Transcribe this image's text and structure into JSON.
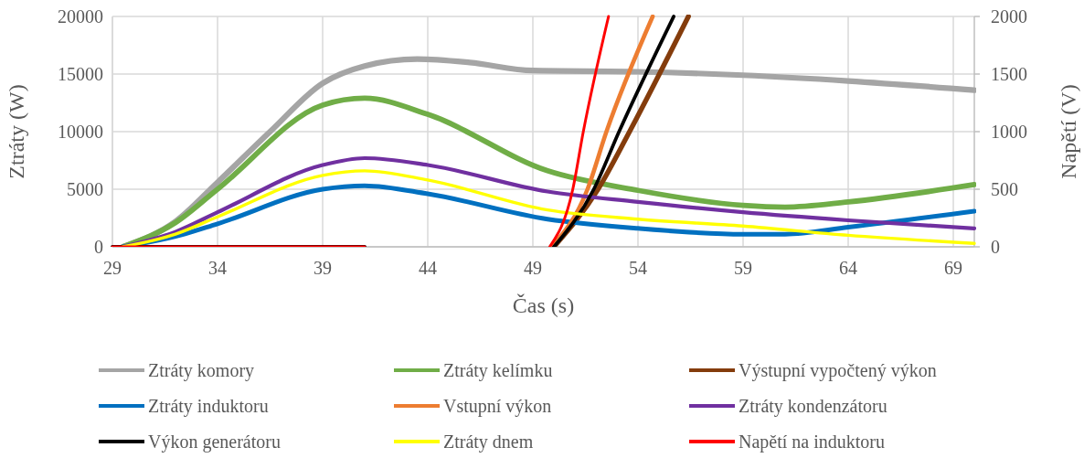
{
  "chart_data": {
    "type": "line",
    "xlabel": "Čas (s)",
    "ylabel": "Ztráty (W)",
    "y2label": "Napětí (V)",
    "xlim": [
      29,
      70
    ],
    "xticks": [
      29,
      34,
      39,
      44,
      49,
      54,
      59,
      64,
      69
    ],
    "ylim": [
      0,
      20000
    ],
    "yticks": [
      0,
      5000,
      10000,
      15000,
      20000
    ],
    "y2lim": [
      0,
      2000
    ],
    "y2ticks": [
      0,
      500,
      1000,
      1500,
      2000
    ],
    "grid": true,
    "legend": "bottom",
    "line_style": "solid",
    "marker": "none",
    "series": [
      {
        "name": "Ztráty komory",
        "color": "#a5a5a5",
        "x": [
          29.5,
          32,
          34,
          36.5,
          39,
          41,
          43.5,
          46,
          49,
          54,
          59,
          64,
          70
        ],
        "values": [
          0,
          2200,
          5600,
          10000,
          14200,
          15700,
          16300,
          16000,
          15300,
          15200,
          14900,
          14400,
          13600
        ]
      },
      {
        "name": "Ztráty kelímku",
        "color": "#70ad47",
        "x": [
          29.5,
          32,
          34,
          39,
          41,
          44,
          49.7,
          54,
          59,
          61,
          64,
          70
        ],
        "values": [
          0,
          2100,
          5000,
          12300,
          12900,
          11500,
          6600,
          4900,
          3600,
          3450,
          3900,
          5400
        ]
      },
      {
        "name": "Výstupní vypočtený výkon",
        "color": "#843c0c",
        "x": [
          50,
          52.1,
          53.6,
          56.4
        ],
        "values": [
          0,
          5000,
          10000,
          20000
        ]
      },
      {
        "name": "Ztráty induktoru",
        "color": "#0070c0",
        "x": [
          29.5,
          32,
          34,
          39,
          41,
          44,
          49.7,
          54,
          59,
          61,
          64,
          70
        ],
        "values": [
          0,
          900,
          2000,
          5000,
          5300,
          4600,
          2400,
          1600,
          1100,
          1100,
          1700,
          3100
        ]
      },
      {
        "name": "Vstupní výkon",
        "color": "#ed7d31",
        "x": [
          49.9,
          51.6,
          52.5,
          54.7
        ],
        "values": [
          0,
          5000,
          10000,
          20000
        ]
      },
      {
        "name": "Ztráty kondenzátoru",
        "color": "#7030a0",
        "x": [
          29.5,
          32,
          34,
          39,
          41,
          44,
          49.7,
          54,
          59,
          64,
          70
        ],
        "values": [
          0,
          1300,
          3000,
          7100,
          7700,
          7100,
          4800,
          3900,
          3000,
          2300,
          1600
        ]
      },
      {
        "name": "Výkon generátoru",
        "color": "#000000",
        "x": [
          29,
          41,
          45,
          50,
          51.9,
          53.1,
          55.7
        ],
        "values": [
          0,
          0,
          null,
          0,
          5000,
          10000,
          20000
        ]
      },
      {
        "name": "Ztráty dnem",
        "color": "#ffff00",
        "x": [
          29.5,
          32,
          34,
          39,
          41,
          44,
          49.7,
          54,
          59,
          64,
          70
        ],
        "values": [
          0,
          1100,
          2600,
          6200,
          6600,
          5800,
          3200,
          2400,
          1800,
          1000,
          300
        ]
      },
      {
        "name": "Napětí na induktoru",
        "color": "#ff0000",
        "axis": "y2",
        "x": [
          29,
          41,
          45,
          49.8,
          50.9,
          51.4,
          52.6
        ],
        "values": [
          0,
          0,
          null,
          0,
          500,
          1000,
          2000
        ]
      }
    ]
  }
}
